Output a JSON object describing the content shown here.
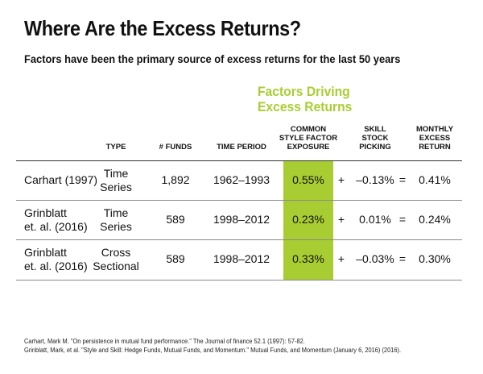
{
  "title": "Where Are the Excess Returns?",
  "subtitle": "Factors have been the primary source of excess returns for the last 50 years",
  "colors": {
    "accent": "#a8cd32",
    "highlight_fill": "#a8cd32",
    "text": "#111111",
    "rule": "#8a8a8a"
  },
  "chart_data": {
    "type": "table",
    "group_header": {
      "line1": "Factors Driving",
      "line2": "Excess Returns"
    },
    "columns": [
      {
        "key": "study",
        "lines": [
          ""
        ]
      },
      {
        "key": "type",
        "lines": [
          "TYPE"
        ]
      },
      {
        "key": "funds",
        "lines": [
          "# FUNDS"
        ]
      },
      {
        "key": "period",
        "lines": [
          "TIME PERIOD"
        ]
      },
      {
        "key": "factor",
        "lines": [
          "COMMON",
          "STYLE FACTOR",
          "EXPOSURE"
        ]
      },
      {
        "key": "plus",
        "lines": [
          ""
        ]
      },
      {
        "key": "skill",
        "lines": [
          "SKILL",
          "STOCK",
          "PICKING"
        ]
      },
      {
        "key": "eq",
        "lines": [
          ""
        ]
      },
      {
        "key": "monthly",
        "lines": [
          "MONTHLY",
          "EXCESS",
          "RETURN"
        ]
      }
    ],
    "rows": [
      {
        "study": [
          "Carhart (1997)"
        ],
        "type": [
          "Time",
          "Series"
        ],
        "funds": "1,892",
        "period": "1962–1993",
        "factor": "0.55%",
        "plus": "+",
        "skill": "–0.13%",
        "eq": "=",
        "monthly": "0.41%",
        "values": {
          "funds": 1892,
          "factor_pct": 0.55,
          "skill_pct": -0.13,
          "monthly_pct": 0.41
        }
      },
      {
        "study": [
          "Grinblatt",
          "et. al. (2016)"
        ],
        "type": [
          "Time",
          "Series"
        ],
        "funds": "589",
        "period": "1998–2012",
        "factor": "0.23%",
        "plus": "+",
        "skill": "0.01%",
        "eq": "=",
        "monthly": "0.24%",
        "values": {
          "funds": 589,
          "factor_pct": 0.23,
          "skill_pct": 0.01,
          "monthly_pct": 0.24
        }
      },
      {
        "study": [
          "Grinblatt",
          "et. al. (2016)"
        ],
        "type": [
          "Cross",
          "Sectional"
        ],
        "funds": "589",
        "period": "1998–2012",
        "factor": "0.33%",
        "plus": "+",
        "skill": "–0.03%",
        "eq": "=",
        "monthly": "0.30%",
        "values": {
          "funds": 589,
          "factor_pct": 0.33,
          "skill_pct": -0.03,
          "monthly_pct": 0.3
        }
      }
    ],
    "highlight_column": "factor"
  },
  "footnotes": [
    "Carhart, Mark M. \"On persistence in mutual fund performance.\" The Journal of finance 52.1 (1997): 57-82.",
    "Grinblatt, Mark, et al. \"Style and Skill: Hedge Funds, Mutual Funds, and Momentum.\" Mutual Funds, and Momentum (January 6, 2016) (2016)."
  ]
}
